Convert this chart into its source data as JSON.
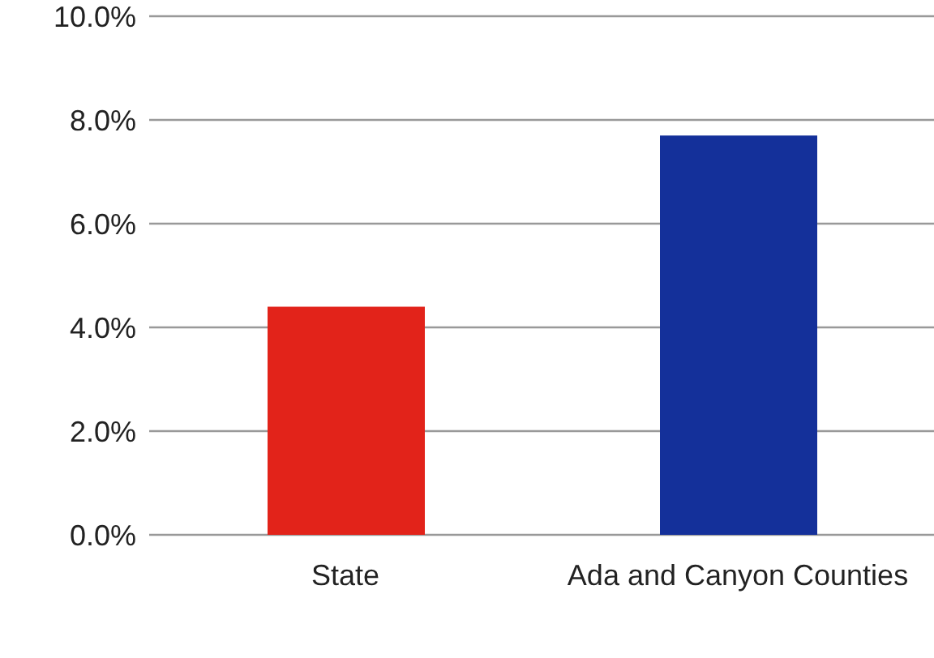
{
  "chart_data": {
    "type": "bar",
    "categories": [
      "State",
      "Ada and Canyon Counties"
    ],
    "values": [
      4.4,
      7.7
    ],
    "colors": [
      "#e2231a",
      "#14309a"
    ],
    "ylim": [
      0,
      10
    ],
    "yticks": [
      {
        "value": 0,
        "label": "0.0%"
      },
      {
        "value": 2,
        "label": "2.0%"
      },
      {
        "value": 4,
        "label": "4.0%"
      },
      {
        "value": 6,
        "label": "6.0%"
      },
      {
        "value": 8,
        "label": "8.0%"
      },
      {
        "value": 10,
        "label": "10.0%"
      }
    ],
    "grid": "y",
    "legend": false
  }
}
